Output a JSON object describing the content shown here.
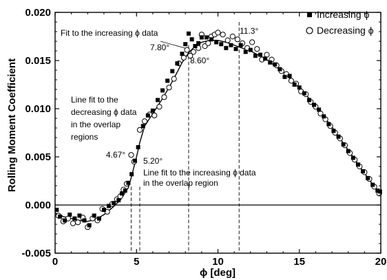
{
  "chart_data": {
    "type": "scatter",
    "title": "",
    "xlabel": "ϕ [deg]",
    "ylabel": "Rolling Moment Coefficient",
    "xlim": [
      0,
      20
    ],
    "ylim": [
      -0.005,
      0.02
    ],
    "x_ticks": [
      0,
      5,
      10,
      15,
      20
    ],
    "x_tick_labels": [
      "0",
      "5",
      "10",
      "15",
      "20"
    ],
    "y_ticks": [
      -0.005,
      0,
      0.005,
      0.01,
      0.015,
      0.02
    ],
    "y_tick_labels": [
      "-0.005",
      "0.000",
      "0.005",
      "0.010",
      "0.015",
      "0.020"
    ],
    "grid": false,
    "legend_position": "top-right",
    "series": [
      {
        "name": "Increasing ϕ",
        "marker": "filled-square",
        "points": [
          [
            0.1,
            -0.0005
          ],
          [
            0.3,
            -0.0012
          ],
          [
            0.6,
            -0.0016
          ],
          [
            0.9,
            -0.001
          ],
          [
            1.2,
            -0.0014
          ],
          [
            1.5,
            -0.0011
          ],
          [
            1.8,
            -0.0016
          ],
          [
            2.1,
            -0.0021
          ],
          [
            2.4,
            -0.0011
          ],
          [
            2.7,
            -0.0014
          ],
          [
            3.0,
            -0.0005
          ],
          [
            3.3,
            -0.0001
          ],
          [
            3.6,
            0.0002
          ],
          [
            3.9,
            0.0005
          ],
          [
            4.1,
            0.0012
          ],
          [
            4.3,
            0.0015
          ],
          [
            4.5,
            0.0023
          ],
          [
            4.7,
            0.0032
          ],
          [
            4.9,
            0.0046
          ],
          [
            5.1,
            0.006
          ],
          [
            5.4,
            0.0082
          ],
          [
            5.7,
            0.0093
          ],
          [
            6.0,
            0.0098
          ],
          [
            6.3,
            0.0109
          ],
          [
            6.6,
            0.0119
          ],
          [
            6.9,
            0.0129
          ],
          [
            7.2,
            0.0139
          ],
          [
            7.5,
            0.0147
          ],
          [
            7.8,
            0.0157
          ],
          [
            8.0,
            0.0167
          ],
          [
            8.2,
            0.0178
          ],
          [
            8.4,
            0.0172
          ],
          [
            8.6,
            0.0165
          ],
          [
            8.8,
            0.0168
          ],
          [
            9.0,
            0.0174
          ],
          [
            9.3,
            0.0174
          ],
          [
            9.6,
            0.0172
          ],
          [
            9.9,
            0.0169
          ],
          [
            10.2,
            0.0167
          ],
          [
            10.5,
            0.0163
          ],
          [
            10.8,
            0.0166
          ],
          [
            11.1,
            0.0162
          ],
          [
            11.4,
            0.0166
          ],
          [
            11.7,
            0.0159
          ],
          [
            12.0,
            0.0161
          ],
          [
            12.3,
            0.0155
          ],
          [
            12.6,
            0.0156
          ],
          [
            12.9,
            0.0152
          ],
          [
            13.2,
            0.0148
          ],
          [
            13.5,
            0.0146
          ],
          [
            13.8,
            0.0141
          ],
          [
            14.1,
            0.0133
          ],
          [
            14.4,
            0.0134
          ],
          [
            14.7,
            0.0125
          ],
          [
            15.0,
            0.0122
          ],
          [
            15.3,
            0.0116
          ],
          [
            15.6,
            0.0109
          ],
          [
            15.9,
            0.0104
          ],
          [
            16.2,
            0.0099
          ],
          [
            16.5,
            0.0092
          ],
          [
            16.8,
            0.0084
          ],
          [
            17.1,
            0.0077
          ],
          [
            17.4,
            0.0071
          ],
          [
            17.7,
            0.0063
          ],
          [
            18.0,
            0.0056
          ],
          [
            18.3,
            0.0049
          ],
          [
            18.6,
            0.0042
          ],
          [
            18.9,
            0.0035
          ],
          [
            19.2,
            0.0028
          ],
          [
            19.5,
            0.0021
          ],
          [
            19.8,
            0.0015
          ],
          [
            19.95,
            0.0014
          ]
        ]
      },
      {
        "name": "Decreasing ϕ",
        "marker": "open-circle",
        "points": [
          [
            0.2,
            -0.0011
          ],
          [
            0.5,
            -0.0017
          ],
          [
            0.8,
            -0.0014
          ],
          [
            1.1,
            -0.0019
          ],
          [
            1.4,
            -0.0018
          ],
          [
            1.7,
            -0.0013
          ],
          [
            2.0,
            -0.0023
          ],
          [
            2.3,
            -0.0014
          ],
          [
            2.6,
            -0.0016
          ],
          [
            2.9,
            -0.0004
          ],
          [
            3.2,
            -0.0007
          ],
          [
            3.5,
            0.0001
          ],
          [
            3.8,
            0.0006
          ],
          [
            4.0,
            0.0009
          ],
          [
            4.2,
            0.0016
          ],
          [
            4.4,
            0.0022
          ],
          [
            4.67,
            0.0052
          ],
          [
            4.85,
            0.0045
          ],
          [
            5.2,
            0.0078
          ],
          [
            5.5,
            0.0087
          ],
          [
            5.8,
            0.0094
          ],
          [
            6.1,
            0.0093
          ],
          [
            6.4,
            0.0102
          ],
          [
            6.7,
            0.0112
          ],
          [
            7.0,
            0.0122
          ],
          [
            7.3,
            0.0131
          ],
          [
            7.6,
            0.0147
          ],
          [
            7.9,
            0.0153
          ],
          [
            8.1,
            0.0161
          ],
          [
            8.3,
            0.0155
          ],
          [
            8.5,
            0.0159
          ],
          [
            8.8,
            0.0163
          ],
          [
            9.0,
            0.0177
          ],
          [
            9.2,
            0.0165
          ],
          [
            9.4,
            0.0168
          ],
          [
            9.6,
            0.0175
          ],
          [
            9.8,
            0.0177
          ],
          [
            10.0,
            0.0179
          ],
          [
            10.3,
            0.0177
          ],
          [
            10.6,
            0.0171
          ],
          [
            10.9,
            0.0175
          ],
          [
            11.2,
            0.0172
          ],
          [
            11.5,
            0.0168
          ],
          [
            11.8,
            0.0163
          ],
          [
            12.1,
            0.0169
          ],
          [
            12.4,
            0.0162
          ],
          [
            12.7,
            0.0151
          ],
          [
            13.0,
            0.0156
          ],
          [
            13.3,
            0.0151
          ],
          [
            13.6,
            0.0145
          ],
          [
            13.9,
            0.0139
          ],
          [
            14.2,
            0.0136
          ],
          [
            14.5,
            0.0129
          ],
          [
            14.8,
            0.0126
          ],
          [
            15.1,
            0.0118
          ],
          [
            15.4,
            0.0115
          ],
          [
            15.7,
            0.0107
          ],
          [
            16.0,
            0.0102
          ],
          [
            16.3,
            0.0095
          ],
          [
            16.6,
            0.0089
          ],
          [
            16.9,
            0.0082
          ],
          [
            17.2,
            0.0075
          ],
          [
            17.5,
            0.0069
          ],
          [
            17.8,
            0.0062
          ],
          [
            18.1,
            0.0054
          ],
          [
            18.4,
            0.0047
          ],
          [
            18.7,
            0.004
          ],
          [
            19.0,
            0.0034
          ],
          [
            19.3,
            0.0027
          ],
          [
            19.6,
            0.0019
          ],
          [
            19.9,
            0.0012
          ]
        ]
      }
    ],
    "fit_curve": [
      [
        0,
        -0.0008
      ],
      [
        0.5,
        -0.0012
      ],
      [
        1,
        -0.0014
      ],
      [
        1.5,
        -0.0016
      ],
      [
        2,
        -0.0017
      ],
      [
        2.5,
        -0.0015
      ],
      [
        3,
        -0.001
      ],
      [
        3.5,
        -0.0003
      ],
      [
        4,
        0.0005
      ],
      [
        4.5,
        0.0018
      ],
      [
        4.67,
        0.0028
      ],
      [
        5,
        0.005
      ],
      [
        5.2,
        0.0065
      ],
      [
        5.5,
        0.0082
      ],
      [
        6,
        0.0095
      ],
      [
        6.5,
        0.0108
      ],
      [
        7,
        0.0122
      ],
      [
        7.5,
        0.0138
      ],
      [
        7.8,
        0.0148
      ],
      [
        8.2,
        0.0158
      ],
      [
        8.6,
        0.0165
      ],
      [
        9,
        0.0169
      ],
      [
        9.5,
        0.0171
      ],
      [
        10,
        0.0171
      ],
      [
        10.5,
        0.0169
      ],
      [
        11,
        0.0166
      ],
      [
        11.3,
        0.0164
      ],
      [
        12,
        0.016
      ],
      [
        13,
        0.0151
      ],
      [
        14,
        0.0138
      ],
      [
        15,
        0.0122
      ],
      [
        16,
        0.0103
      ],
      [
        17,
        0.0081
      ],
      [
        18,
        0.0057
      ],
      [
        19,
        0.0033
      ],
      [
        20,
        0.001
      ]
    ],
    "reference_lines_x": [
      4.67,
      5.2,
      8.2,
      11.3
    ],
    "annotations": [
      {
        "id": "fit-increasing",
        "text": "Fit to the increasing ϕ data"
      },
      {
        "id": "angle-780",
        "text": "7.80°"
      },
      {
        "id": "angle-860",
        "text": "8.60°"
      },
      {
        "id": "angle-113",
        "text": "11.3°"
      },
      {
        "id": "line-fit-decreasing-1",
        "text": "Line fit to the"
      },
      {
        "id": "line-fit-decreasing-2",
        "text": "decreasing ϕ data"
      },
      {
        "id": "line-fit-decreasing-3",
        "text": "in the overlap"
      },
      {
        "id": "line-fit-decreasing-4",
        "text": "regions"
      },
      {
        "id": "angle-467",
        "text": "4.67°"
      },
      {
        "id": "angle-520",
        "text": "5.20°"
      },
      {
        "id": "line-fit-increasing-1",
        "text": "Line fit to the increasing ϕ data"
      },
      {
        "id": "line-fit-increasing-2",
        "text": "in the overlap region"
      }
    ]
  }
}
